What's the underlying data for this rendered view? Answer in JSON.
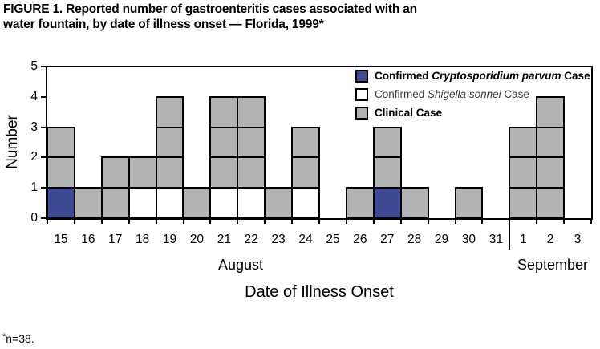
{
  "figure": {
    "title_line1": "FIGURE 1. Reported number of gastroenteritis cases associated with an",
    "title_line2": "water fountain, by date of illness onset — Florida, 1999*",
    "footnote_star": "*",
    "footnote_text": "n=38."
  },
  "legend": {
    "items": [
      {
        "id": "crypto",
        "prefix": "Confirmed ",
        "italic": "Cryptosporidium parvum",
        "suffix": " Case",
        "swatch_color": "#3E4B94",
        "bold": true,
        "text_color": "#000000"
      },
      {
        "id": "shigella",
        "prefix": "Confirmed ",
        "italic": "Shigella sonnei",
        "suffix": " Case",
        "swatch_color": "#FFFFFF",
        "bold": false,
        "text_color": "#3F3F3F"
      },
      {
        "id": "clinical",
        "prefix": "Clinical Case",
        "italic": "",
        "suffix": "",
        "swatch_color": "#B2B3B5",
        "bold": true,
        "text_color": "#000000"
      }
    ]
  },
  "chart_data": {
    "type": "bar",
    "variant": "epi-curve-stacked-unit-squares",
    "title": "Reported number of gastroenteritis cases associated with an water fountain, by date of illness onset — Florida, 1999",
    "xlabel": "Date of Illness Onset",
    "ylabel": "Number",
    "ylim": [
      0,
      5
    ],
    "y_ticks": [
      0,
      1,
      2,
      3,
      4,
      5
    ],
    "grid": false,
    "legend_position": "top-right-inside",
    "n_total": "n=38",
    "case_colors": {
      "crypto": "#3E4B94",
      "shigella": "#FFFFFF",
      "clinical": "#B2B3B5"
    },
    "months": [
      {
        "label": "August",
        "num_columns": 17,
        "label_center_x": 300
      },
      {
        "label": "September",
        "num_columns": 3,
        "label_center_x": 689
      }
    ],
    "columns": [
      {
        "day": "15",
        "month": "August",
        "stack": [
          "crypto",
          "clinical",
          "clinical"
        ]
      },
      {
        "day": "16",
        "month": "August",
        "stack": [
          "clinical"
        ]
      },
      {
        "day": "17",
        "month": "August",
        "stack": [
          "clinical",
          "clinical"
        ]
      },
      {
        "day": "18",
        "month": "August",
        "stack": [
          "shigella",
          "clinical"
        ]
      },
      {
        "day": "19",
        "month": "August",
        "stack": [
          "shigella",
          "clinical",
          "clinical",
          "clinical"
        ]
      },
      {
        "day": "20",
        "month": "August",
        "stack": [
          "clinical"
        ]
      },
      {
        "day": "21",
        "month": "August",
        "stack": [
          "shigella",
          "clinical",
          "clinical",
          "clinical"
        ]
      },
      {
        "day": "22",
        "month": "August",
        "stack": [
          "shigella",
          "clinical",
          "clinical",
          "clinical"
        ]
      },
      {
        "day": "23",
        "month": "August",
        "stack": [
          "clinical"
        ]
      },
      {
        "day": "24",
        "month": "August",
        "stack": [
          "shigella",
          "clinical",
          "clinical"
        ]
      },
      {
        "day": "25",
        "month": "August",
        "stack": []
      },
      {
        "day": "26",
        "month": "August",
        "stack": [
          "clinical"
        ]
      },
      {
        "day": "27",
        "month": "August",
        "stack": [
          "crypto",
          "clinical",
          "clinical"
        ]
      },
      {
        "day": "28",
        "month": "August",
        "stack": [
          "clinical"
        ]
      },
      {
        "day": "29",
        "month": "August",
        "stack": []
      },
      {
        "day": "30",
        "month": "August",
        "stack": [
          "clinical"
        ]
      },
      {
        "day": "31",
        "month": "August",
        "stack": []
      },
      {
        "day": "1",
        "month": "September",
        "stack": [
          "clinical",
          "clinical",
          "clinical"
        ]
      },
      {
        "day": "2",
        "month": "September",
        "stack": [
          "clinical",
          "clinical",
          "clinical",
          "clinical"
        ]
      },
      {
        "day": "3",
        "month": "September",
        "stack": []
      }
    ]
  }
}
